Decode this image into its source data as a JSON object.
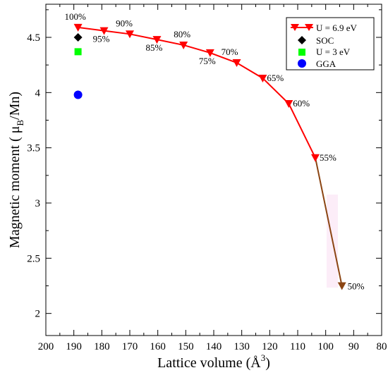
{
  "chart_data": {
    "type": "line",
    "xlabel_main": "Lattice volume (",
    "xlabel_unit": "Å",
    "xlabel_sup": "3",
    "xlabel_end": ")",
    "ylabel_main": "Magnetic moment ( μ",
    "ylabel_sub": "B",
    "ylabel_end": "/Mn)",
    "xlim": [
      200,
      80
    ],
    "ylim": [
      1.8,
      4.8
    ],
    "xticks": [
      200,
      190,
      180,
      170,
      160,
      150,
      140,
      130,
      120,
      110,
      100,
      90,
      80
    ],
    "yticks": [
      2,
      2.5,
      3,
      3.5,
      4,
      4.5
    ],
    "ytick_labels": [
      "2",
      "2.5",
      "3",
      "3.5",
      "4",
      "4.5"
    ],
    "legend_position": "top-right",
    "series": [
      {
        "name": "U = 6.9 eV",
        "color": "#ff0000",
        "marker": "triangle-down",
        "x": [
          188.5,
          179.2,
          170.0,
          160.3,
          150.8,
          141.3,
          131.8,
          122.5,
          113.2,
          103.7,
          94.2
        ],
        "y": [
          4.59,
          4.56,
          4.53,
          4.48,
          4.43,
          4.36,
          4.27,
          4.13,
          3.9,
          3.41,
          2.25
        ],
        "point_labels": [
          "100%",
          "95%",
          "90%",
          "85%",
          "80%",
          "75%",
          "70%",
          "65%",
          "60%",
          "55%",
          "50%"
        ],
        "last_segment_color": "#8b4513"
      },
      {
        "name": "SOC",
        "color": "#000000",
        "marker": "diamond",
        "x": [
          188.5
        ],
        "y": [
          4.5
        ]
      },
      {
        "name": "U = 3 eV",
        "color": "#00ff00",
        "marker": "square",
        "x": [
          188.5
        ],
        "y": [
          4.37
        ]
      },
      {
        "name": "GGA",
        "color": "#0000ff",
        "marker": "circle",
        "x": [
          188.5
        ],
        "y": [
          3.98
        ]
      }
    ]
  }
}
